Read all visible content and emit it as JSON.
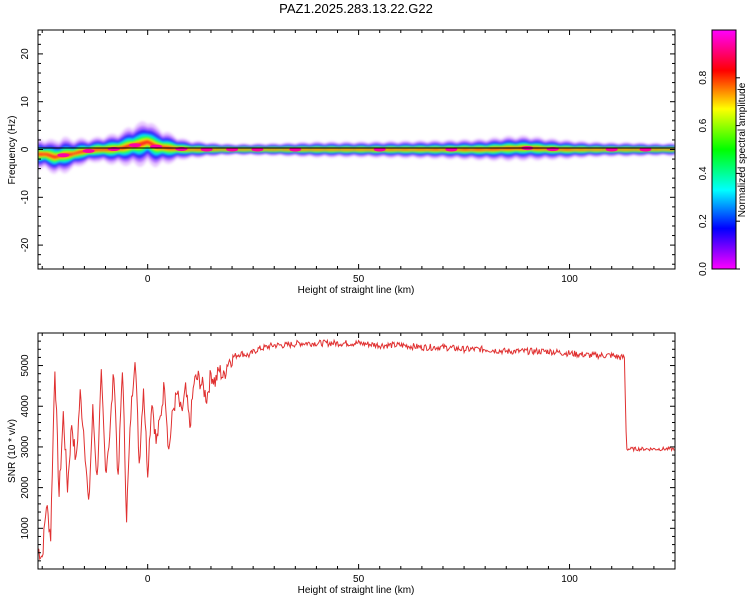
{
  "title": "PAZ1.2025.283.13.22.G22",
  "chart_data": [
    {
      "type": "heatmap",
      "xlabel": "Height of straight line (km)",
      "ylabel": "Frequency (Hz)",
      "xlim": [
        -26,
        125
      ],
      "ylim": [
        -25,
        25
      ],
      "xticks": [
        0,
        50,
        100
      ],
      "yticks": [
        -20,
        -10,
        0,
        10,
        20
      ],
      "colorbar": {
        "label": "Normalized spectral amplitude",
        "range": [
          0,
          1
        ],
        "ticks": [
          "0.0",
          "0.2",
          "0.4",
          "0.6",
          "0.8"
        ],
        "colors": [
          "#ff00ff",
          "#ff0000",
          "#ffff00",
          "#00ff00",
          "#00ffff",
          "#0000ff",
          "#ff00ff"
        ]
      },
      "ridge": {
        "x": [
          -24,
          -22,
          -20,
          -18,
          -16,
          -14,
          -12,
          -10,
          -8,
          -6,
          -4,
          -2,
          0,
          2,
          4,
          6,
          8,
          10,
          15,
          20,
          30,
          40,
          50,
          60,
          70,
          80,
          85,
          90,
          95,
          100,
          105,
          110,
          115,
          120,
          125
        ],
        "freq": [
          -1.0,
          -1.6,
          -1.2,
          -1.0,
          -0.5,
          -0.3,
          0.0,
          0.0,
          0.1,
          0.3,
          0.8,
          1.0,
          1.6,
          0.6,
          0.4,
          0.2,
          0.1,
          0.0,
          0.0,
          0.0,
          0.0,
          0.0,
          0.0,
          0.0,
          0.0,
          0.0,
          0.2,
          0.3,
          0.1,
          0.0,
          0.0,
          0.0,
          0.0,
          0.0,
          0.0
        ],
        "halfwidth_hz": [
          2.0,
          2.2,
          2.4,
          2.0,
          1.8,
          1.6,
          1.6,
          1.8,
          2.0,
          2.2,
          2.6,
          2.8,
          3.0,
          2.6,
          2.2,
          1.8,
          1.4,
          1.2,
          0.9,
          0.7,
          0.8,
          1.0,
          1.0,
          1.1,
          1.2,
          1.4,
          1.6,
          1.6,
          1.4,
          1.2,
          1.0,
          0.9,
          0.9,
          0.8,
          0.8
        ]
      }
    },
    {
      "type": "line",
      "xlabel": "Height of straight line (km)",
      "ylabel": "SNR (10 * v/v)",
      "xlim": [
        -26,
        125
      ],
      "ylim": [
        0,
        5800
      ],
      "xticks": [
        0,
        50,
        100
      ],
      "yticks": [
        1000,
        2000,
        3000,
        4000,
        5000
      ],
      "series": [
        {
          "name": "SNR",
          "color": "#e03030",
          "x": [
            -26,
            -25,
            -24,
            -23,
            -22,
            -21,
            -20,
            -19,
            -18,
            -17,
            -16,
            -15,
            -14,
            -13,
            -12,
            -11,
            -10,
            -9,
            -8,
            -7,
            -6,
            -5,
            -4,
            -3,
            -2,
            -1,
            0,
            1,
            2,
            3,
            4,
            5,
            6,
            7,
            8,
            9,
            10,
            11,
            12,
            13,
            14,
            15,
            16,
            17,
            18,
            19,
            20,
            22,
            24,
            26,
            28,
            30,
            33,
            36,
            40,
            45,
            50,
            55,
            60,
            65,
            70,
            75,
            80,
            85,
            90,
            95,
            100,
            105,
            110,
            112,
            113,
            113.5,
            114,
            116,
            118,
            120,
            122,
            124,
            125
          ],
          "y": [
            500,
            300,
            1600,
            800,
            5000,
            1800,
            3800,
            2000,
            3600,
            2600,
            4300,
            3200,
            1500,
            3900,
            2200,
            4700,
            2400,
            3300,
            4900,
            2100,
            5000,
            1300,
            3800,
            5300,
            2600,
            4500,
            2400,
            4200,
            3100,
            3700,
            4600,
            2900,
            3900,
            4300,
            3800,
            4400,
            3500,
            4600,
            4700,
            4500,
            4200,
            4800,
            4600,
            4900,
            4700,
            5100,
            5200,
            5300,
            5250,
            5400,
            5450,
            5500,
            5500,
            5550,
            5550,
            5550,
            5550,
            5500,
            5500,
            5450,
            5450,
            5400,
            5400,
            5350,
            5350,
            5350,
            5300,
            5250,
            5250,
            5200,
            5200,
            2950,
            2950,
            2950,
            2950,
            2950,
            2950,
            2950,
            2950
          ]
        }
      ]
    }
  ]
}
